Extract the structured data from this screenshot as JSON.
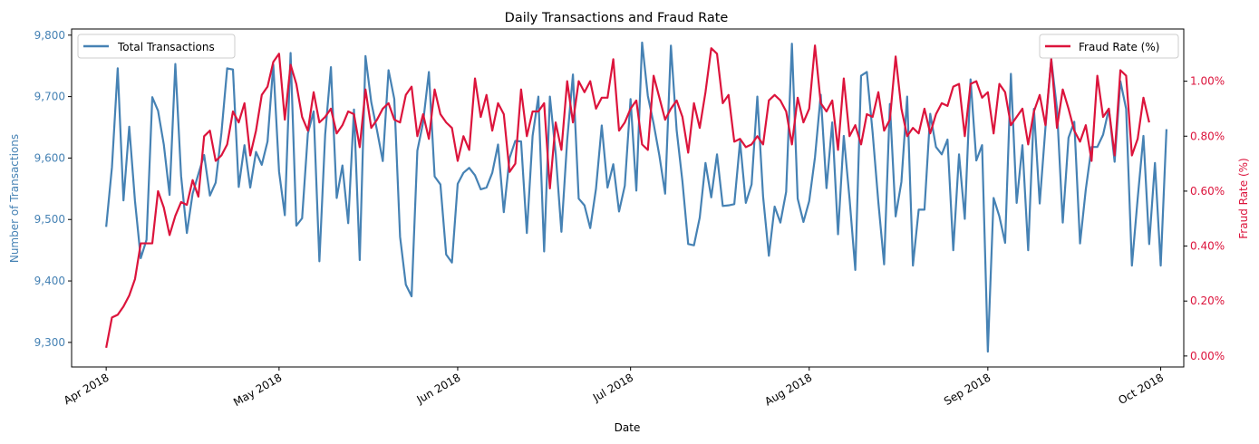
{
  "chart_data": {
    "type": "line",
    "title": "Daily Transactions and Fraud Rate",
    "xlabel": "Date",
    "y_left_label": "Number of Transactions",
    "y_right_label": "Fraud Rate (%)",
    "x_range": [
      "2018-03-26",
      "2018-10-05"
    ],
    "y_left_range": [
      9260,
      9810
    ],
    "y_right_range": [
      -0.0004,
      0.0119
    ],
    "x_ticks": [
      "Apr 2018",
      "May 2018",
      "Jun 2018",
      "Jul 2018",
      "Aug 2018",
      "Sep 2018",
      "Oct 2018"
    ],
    "y_left_ticks": [
      "9,300",
      "9,400",
      "9,500",
      "9,600",
      "9,700",
      "9,800"
    ],
    "y_right_ticks": [
      "0.00%",
      "0.20%",
      "0.40%",
      "0.60%",
      "0.80%",
      "1.00%"
    ],
    "grid": false,
    "colors": {
      "transactions": "#4682b4",
      "fraud": "#dc143c"
    },
    "series": [
      {
        "name": "Total Transactions",
        "axis": "left",
        "legend_position": "upper left",
        "x_start": "2018-04-01",
        "values": [
          9488,
          9585,
          9746,
          9531,
          9651,
          9530,
          9437,
          9467,
          9699,
          9677,
          9622,
          9540,
          9753,
          9571,
          9478,
          9542,
          9574,
          9605,
          9539,
          9560,
          9641,
          9746,
          9744,
          9553,
          9621,
          9552,
          9610,
          9589,
          9627,
          9752,
          9578,
          9507,
          9771,
          9490,
          9502,
          9640,
          9676,
          9432,
          9638,
          9748,
          9535,
          9588,
          9494,
          9679,
          9434,
          9766,
          9691,
          9645,
          9595,
          9743,
          9696,
          9472,
          9394,
          9375,
          9612,
          9658,
          9740,
          9570,
          9557,
          9443,
          9430,
          9558,
          9576,
          9584,
          9572,
          9549,
          9552,
          9576,
          9622,
          9512,
          9600,
          9628,
          9627,
          9478,
          9636,
          9700,
          9448,
          9700,
          9608,
          9480,
          9629,
          9736,
          9534,
          9523,
          9486,
          9550,
          9653,
          9552,
          9590,
          9513,
          9555,
          9696,
          9547,
          9788,
          9701,
          9656,
          9604,
          9542,
          9783,
          9645,
          9562,
          9460,
          9458,
          9503,
          9592,
          9536,
          9606,
          9522,
          9523,
          9525,
          9627,
          9527,
          9557,
          9700,
          9537,
          9441,
          9521,
          9495,
          9545,
          9786,
          9534,
          9496,
          9530,
          9601,
          9703,
          9551,
          9658,
          9476,
          9636,
          9534,
          9418,
          9734,
          9740,
          9642,
          9528,
          9427,
          9688,
          9505,
          9561,
          9700,
          9425,
          9516,
          9516,
          9672,
          9618,
          9606,
          9630,
          9450,
          9606,
          9501,
          9728,
          9596,
          9621,
          9285,
          9535,
          9505,
          9462,
          9737,
          9527,
          9621,
          9450,
          9680,
          9526,
          9650,
          9761,
          9680,
          9495,
          9633,
          9659,
          9461,
          9549,
          9618,
          9618,
          9638,
          9680,
          9594,
          9725,
          9680,
          9425,
          9534,
          9636,
          9460,
          9592,
          9425,
          9647
        ]
      },
      {
        "name": "Fraud Rate (%)",
        "axis": "right",
        "legend_position": "upper right",
        "x_start": "2018-04-01",
        "values": [
          0.0003,
          0.0014,
          0.0015,
          0.0018,
          0.0022,
          0.0028,
          0.0041,
          0.0041,
          0.0041,
          0.006,
          0.0054,
          0.0044,
          0.0051,
          0.0056,
          0.0055,
          0.0064,
          0.0058,
          0.008,
          0.0082,
          0.0071,
          0.0073,
          0.0077,
          0.0089,
          0.0085,
          0.0092,
          0.0073,
          0.0082,
          0.0095,
          0.0098,
          0.0107,
          0.011,
          0.0086,
          0.0106,
          0.0099,
          0.0087,
          0.0082,
          0.0096,
          0.0085,
          0.0087,
          0.009,
          0.0081,
          0.0084,
          0.0089,
          0.0088,
          0.0076,
          0.0097,
          0.0083,
          0.0086,
          0.009,
          0.0092,
          0.0086,
          0.0085,
          0.0095,
          0.0098,
          0.008,
          0.0088,
          0.0079,
          0.0097,
          0.0088,
          0.0085,
          0.0083,
          0.0071,
          0.008,
          0.0075,
          0.0101,
          0.0087,
          0.0095,
          0.0082,
          0.0092,
          0.0088,
          0.0067,
          0.007,
          0.0097,
          0.008,
          0.0089,
          0.0089,
          0.0092,
          0.0061,
          0.0085,
          0.0075,
          0.01,
          0.0085,
          0.01,
          0.0096,
          0.01,
          0.009,
          0.0094,
          0.0094,
          0.0108,
          0.0082,
          0.0085,
          0.009,
          0.0093,
          0.0077,
          0.0075,
          0.0102,
          0.0094,
          0.0086,
          0.009,
          0.0093,
          0.0087,
          0.0074,
          0.0092,
          0.0083,
          0.0096,
          0.0112,
          0.011,
          0.0092,
          0.0095,
          0.0078,
          0.0079,
          0.0076,
          0.0077,
          0.008,
          0.0077,
          0.0093,
          0.0095,
          0.0093,
          0.0089,
          0.0077,
          0.0094,
          0.0085,
          0.009,
          0.0113,
          0.0092,
          0.0089,
          0.0093,
          0.0075,
          0.0101,
          0.008,
          0.0084,
          0.0077,
          0.0088,
          0.0087,
          0.0096,
          0.0082,
          0.0086,
          0.0109,
          0.009,
          0.008,
          0.0083,
          0.0081,
          0.009,
          0.0081,
          0.0088,
          0.0092,
          0.0091,
          0.0098,
          0.0099,
          0.008,
          0.0099,
          0.01,
          0.0094,
          0.0096,
          0.0081,
          0.0099,
          0.0096,
          0.0084,
          0.0087,
          0.009,
          0.0077,
          0.0089,
          0.0095,
          0.0084,
          0.0108,
          0.0083,
          0.0097,
          0.009,
          0.0082,
          0.0078,
          0.0084,
          0.0071,
          0.0102,
          0.0087,
          0.009,
          0.0073,
          0.0104,
          0.0102,
          0.0073,
          0.0079,
          0.0094,
          0.0085
        ]
      }
    ]
  }
}
